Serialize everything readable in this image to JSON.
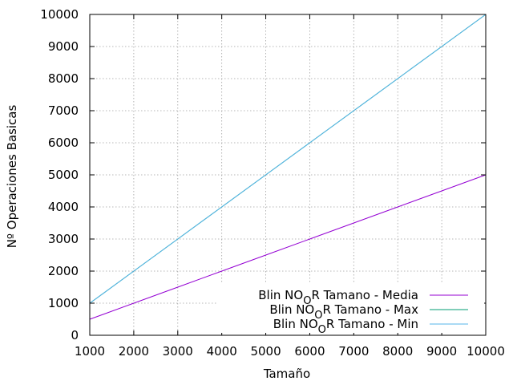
{
  "chart_data": {
    "type": "line",
    "title": "",
    "xlabel": "Tamaño",
    "ylabel": "Nº Operaciones Basicas",
    "xlim": [
      1000,
      10000
    ],
    "ylim": [
      0,
      10000
    ],
    "grid": true,
    "legend_position": "bottom-right",
    "xticks": [
      "1000",
      "2000",
      "3000",
      "4000",
      "5000",
      "6000",
      "7000",
      "8000",
      "9000",
      "10000"
    ],
    "yticks": [
      "0",
      "1000",
      "2000",
      "3000",
      "4000",
      "5000",
      "6000",
      "7000",
      "8000",
      "9000",
      "10000"
    ],
    "series": [
      {
        "name": "Blin NO_O_R Tamano - Media",
        "color": "#9400d3",
        "x": [
          1000,
          2000,
          3000,
          4000,
          5000,
          6000,
          7000,
          8000,
          9000,
          10000
        ],
        "y": [
          500,
          1000,
          1500,
          2000,
          2500,
          3000,
          3500,
          4000,
          4500,
          5000
        ]
      },
      {
        "name": "Blin NO_O_R Tamano - Max",
        "color": "#009e73",
        "x": [
          1000,
          2000,
          3000,
          4000,
          5000,
          6000,
          7000,
          8000,
          9000,
          10000
        ],
        "y": [
          1000,
          2000,
          3000,
          4000,
          5000,
          6000,
          7000,
          8000,
          9000,
          10000
        ]
      },
      {
        "name": "Blin NO_O_R Tamano - Min",
        "color": "#56b4e9",
        "x": [
          1000,
          2000,
          3000,
          4000,
          5000,
          6000,
          7000,
          8000,
          9000,
          10000
        ],
        "y": [
          1000,
          2000,
          3000,
          4000,
          5000,
          6000,
          7000,
          8000,
          9000,
          10000
        ]
      }
    ]
  }
}
